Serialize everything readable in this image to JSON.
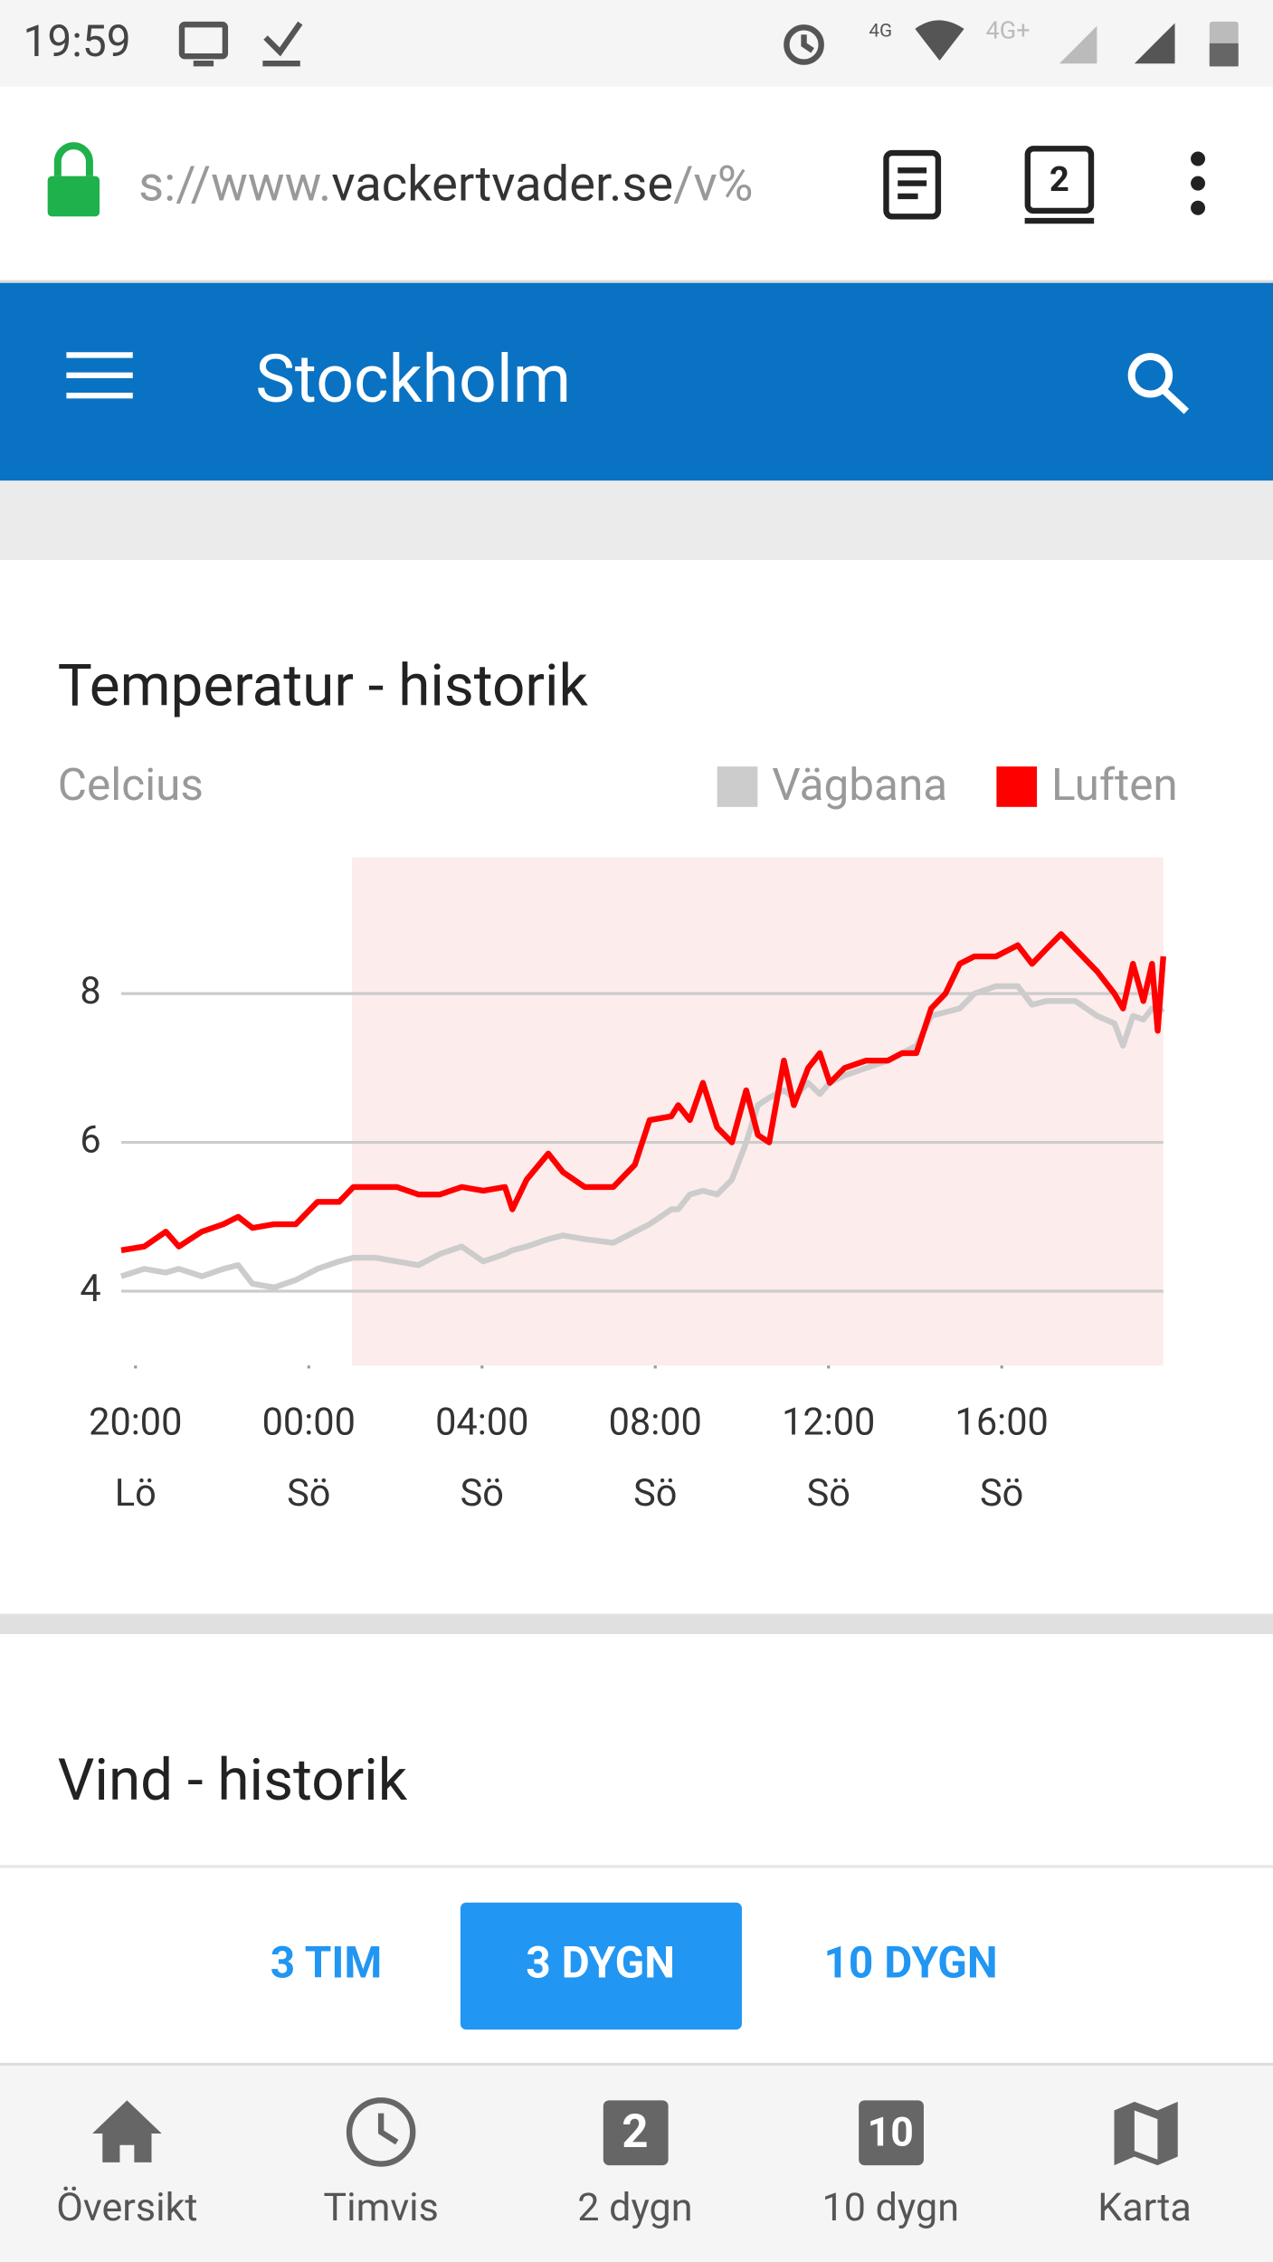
{
  "status_bar": {
    "time": "19:59",
    "network": "4G",
    "network2": "4G+"
  },
  "browser": {
    "url_prefix": "s://www.",
    "url_domain": "vackertvader.se",
    "url_suffix": "/v%",
    "tabs": "2"
  },
  "header": {
    "title": "Stockholm"
  },
  "chart_data": {
    "type": "line",
    "title": "Temperatur - historik",
    "y_label": "Celcius",
    "x": [
      19.67,
      20.2,
      20.7,
      21.0,
      21.53,
      22.03,
      22.37,
      22.7,
      23.2,
      23.7,
      24.2,
      24.7,
      25.03,
      25.53,
      26.03,
      26.53,
      27.03,
      27.53,
      28.03,
      28.53,
      28.7,
      29.03,
      29.53,
      29.87,
      30.37,
      31.03,
      31.53,
      31.87,
      32.37,
      32.53,
      32.8,
      33.1,
      33.43,
      33.77,
      34.1,
      34.37,
      34.63,
      34.97,
      35.2,
      35.53,
      35.8,
      36.03,
      36.37,
      36.87,
      37.37,
      37.7,
      38.03,
      38.37,
      38.7,
      39.03,
      39.37,
      39.87,
      40.37,
      40.7,
      41.03,
      41.37,
      41.7,
      42.2,
      42.6,
      42.8,
      43.03,
      43.27,
      43.47,
      43.6,
      43.73
    ],
    "series": [
      {
        "name": "Vägbana",
        "color": "#cccccc",
        "values": [
          4.2,
          4.3,
          4.25,
          4.3,
          4.2,
          4.3,
          4.35,
          4.1,
          4.05,
          4.15,
          4.3,
          4.4,
          4.45,
          4.45,
          4.4,
          4.35,
          4.5,
          4.6,
          4.4,
          4.5,
          4.55,
          4.6,
          4.7,
          4.75,
          4.7,
          4.65,
          4.8,
          4.9,
          5.1,
          5.1,
          5.3,
          5.35,
          5.3,
          5.5,
          6.0,
          6.5,
          6.6,
          6.7,
          6.6,
          6.8,
          6.65,
          6.8,
          6.9,
          7.0,
          7.1,
          7.2,
          7.3,
          7.7,
          7.75,
          7.8,
          8.0,
          8.1,
          8.1,
          7.85,
          7.9,
          7.9,
          7.9,
          7.7,
          7.6,
          7.3,
          7.7,
          7.65,
          7.8,
          7.75,
          7.8
        ]
      },
      {
        "name": "Luften",
        "color": "#ff0000",
        "values": [
          4.55,
          4.6,
          4.8,
          4.6,
          4.8,
          4.9,
          5.0,
          4.85,
          4.9,
          4.9,
          5.2,
          5.2,
          5.4,
          5.4,
          5.4,
          5.3,
          5.3,
          5.4,
          5.35,
          5.4,
          5.1,
          5.5,
          5.85,
          5.6,
          5.4,
          5.4,
          5.7,
          6.3,
          6.35,
          6.5,
          6.3,
          6.8,
          6.2,
          6.0,
          6.7,
          6.1,
          6.0,
          7.1,
          6.5,
          7.0,
          7.2,
          6.8,
          7.0,
          7.1,
          7.1,
          7.2,
          7.2,
          7.8,
          8.0,
          8.4,
          8.5,
          8.5,
          8.65,
          8.4,
          8.6,
          8.8,
          8.6,
          8.3,
          8.0,
          7.8,
          8.4,
          7.9,
          8.4,
          7.5,
          8.5
        ]
      }
    ],
    "xlim": [
      19.67,
      43.73
    ],
    "ylim": [
      3,
      9.83
    ],
    "xticks": [
      {
        "value": 20,
        "label": [
          "20:00",
          "Lö"
        ]
      },
      {
        "value": 24,
        "label": [
          "00:00",
          "Sö"
        ]
      },
      {
        "value": 28,
        "label": [
          "04:00",
          "Sö"
        ]
      },
      {
        "value": 32,
        "label": [
          "08:00",
          "Sö"
        ]
      },
      {
        "value": 36,
        "label": [
          "12:00",
          "Sö"
        ]
      },
      {
        "value": 40,
        "label": [
          "16:00",
          "Sö"
        ]
      }
    ],
    "yticks": [
      4,
      6,
      8
    ],
    "grid": true,
    "legend": "top-right",
    "highlight": {
      "x": [
        25,
        43.73
      ],
      "color": "#fdecec"
    }
  },
  "next_section": {
    "title": "Vind - historik"
  },
  "range_buttons": [
    "3 TIM",
    "3 DYGN",
    "10 DYGN"
  ],
  "bottom_nav": [
    {
      "label": "Översikt"
    },
    {
      "label": "Timvis"
    },
    {
      "label": "2 dygn",
      "icon": "2"
    },
    {
      "label": "10 dygn",
      "icon": "10"
    },
    {
      "label": "Karta"
    }
  ]
}
